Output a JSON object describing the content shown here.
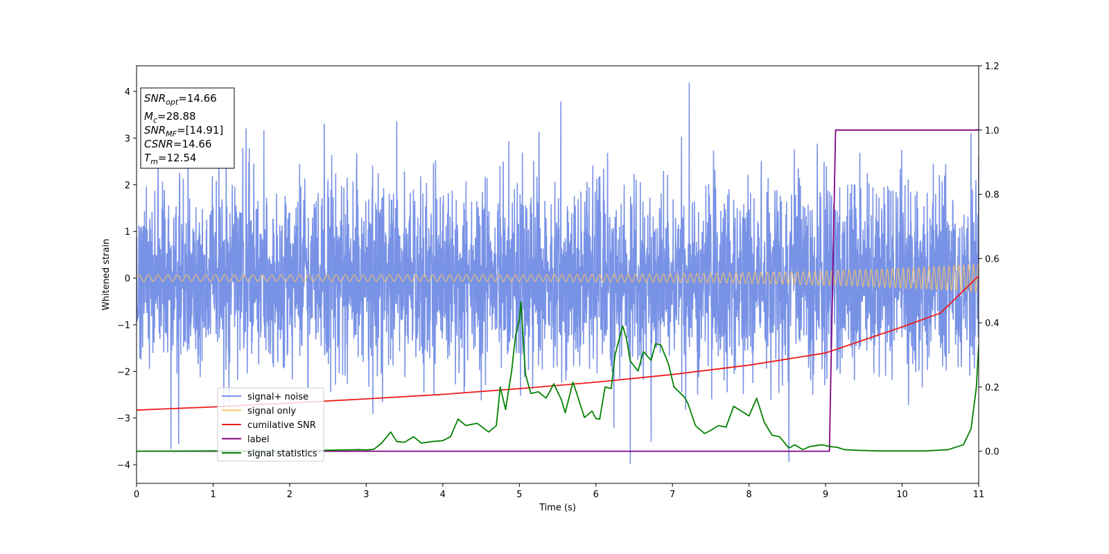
{
  "chart_data": {
    "type": "line",
    "title": "",
    "xlabel": "Time (s)",
    "ylabel": "Whitened strain",
    "xlim": [
      0,
      11
    ],
    "ylim": [
      -4.4,
      4.55
    ],
    "y2lim": [
      -0.1,
      1.2
    ],
    "xticks": [
      "0",
      "1",
      "2",
      "3",
      "4",
      "5",
      "6",
      "7",
      "8",
      "9",
      "10",
      "11"
    ],
    "yticks": [
      "−4",
      "−3",
      "−2",
      "−1",
      "0",
      "1",
      "2",
      "3",
      "4"
    ],
    "y2ticks": [
      "0.0",
      "0.2",
      "0.4",
      "0.6",
      "0.8",
      "1.0",
      "1.2"
    ],
    "grid": false,
    "legend_position": "lower-left",
    "annotation": {
      "snr_opt": {
        "name": "SNR",
        "sub": "opt",
        "value": "=14.66"
      },
      "mc": {
        "name": "M",
        "sub": "c",
        "value": "=28.88"
      },
      "snr_mf": {
        "name": "SNR",
        "sub": "MF",
        "value": "=[14.91]"
      },
      "csnr": {
        "name": "CSNR",
        "sub": "",
        "value": "=14.66"
      },
      "tm": {
        "name": "T",
        "sub": "m",
        "value": "=12.54"
      }
    },
    "series": [
      {
        "name": "signal+ noise",
        "color": "#7892e6",
        "axis": "left",
        "kind": "noise",
        "sigma": 1.0,
        "n_samples": 3600,
        "outliers": [
          {
            "x": 0.45,
            "y": -3.65
          },
          {
            "x": 0.55,
            "y": -3.55
          },
          {
            "x": 2.45,
            "y": 3.3
          },
          {
            "x": 3.4,
            "y": 3.35
          },
          {
            "x": 5.54,
            "y": 3.78
          },
          {
            "x": 6.45,
            "y": -3.98
          },
          {
            "x": 6.72,
            "y": -3.5
          },
          {
            "x": 7.22,
            "y": 4.18
          },
          {
            "x": 8.52,
            "y": -3.93
          },
          {
            "x": 10.9,
            "y": 3.1
          },
          {
            "x": 11.0,
            "y": 2.6
          }
        ]
      },
      {
        "name": "signal only",
        "color": "#f5c16a",
        "axis": "left",
        "kind": "chirp",
        "amp_start": 0.07,
        "amp_end": 0.3,
        "freq_start": 8,
        "freq_end": 16
      },
      {
        "name": "cumilative SNR",
        "color": "#ee1b1b",
        "axis": "right",
        "points": [
          [
            0,
            0.128
          ],
          [
            1,
            0.138
          ],
          [
            2,
            0.15
          ],
          [
            3,
            0.163
          ],
          [
            4,
            0.177
          ],
          [
            5,
            0.195
          ],
          [
            6,
            0.215
          ],
          [
            7,
            0.239
          ],
          [
            8,
            0.268
          ],
          [
            9,
            0.306
          ],
          [
            10,
            0.387
          ],
          [
            10.5,
            0.43
          ],
          [
            11,
            0.546
          ]
        ]
      },
      {
        "name": "label",
        "color": "#800080",
        "axis": "right",
        "points": [
          [
            0,
            0.0
          ],
          [
            9.05,
            0.0
          ],
          [
            9.13,
            1.0
          ],
          [
            11,
            1.0
          ]
        ]
      },
      {
        "name": "signal statistics",
        "color": "#008000",
        "axis": "right",
        "points": [
          [
            0,
            0.0
          ],
          [
            1.0,
            0.001
          ],
          [
            2.0,
            0.001
          ],
          [
            2.5,
            0.003
          ],
          [
            2.9,
            0.005
          ],
          [
            3.0,
            0.004
          ],
          [
            3.1,
            0.006
          ],
          [
            3.2,
            0.025
          ],
          [
            3.32,
            0.06
          ],
          [
            3.4,
            0.03
          ],
          [
            3.5,
            0.028
          ],
          [
            3.62,
            0.045
          ],
          [
            3.72,
            0.025
          ],
          [
            3.85,
            0.03
          ],
          [
            4.0,
            0.033
          ],
          [
            4.1,
            0.045
          ],
          [
            4.2,
            0.1
          ],
          [
            4.3,
            0.08
          ],
          [
            4.45,
            0.087
          ],
          [
            4.6,
            0.06
          ],
          [
            4.7,
            0.08
          ],
          [
            4.75,
            0.2
          ],
          [
            4.82,
            0.13
          ],
          [
            4.9,
            0.25
          ],
          [
            4.95,
            0.36
          ],
          [
            5.0,
            0.41
          ],
          [
            5.02,
            0.465
          ],
          [
            5.08,
            0.24
          ],
          [
            5.15,
            0.18
          ],
          [
            5.25,
            0.185
          ],
          [
            5.35,
            0.165
          ],
          [
            5.45,
            0.21
          ],
          [
            5.55,
            0.16
          ],
          [
            5.6,
            0.12
          ],
          [
            5.7,
            0.215
          ],
          [
            5.75,
            0.18
          ],
          [
            5.85,
            0.105
          ],
          [
            5.95,
            0.125
          ],
          [
            6.0,
            0.102
          ],
          [
            6.05,
            0.1
          ],
          [
            6.12,
            0.2
          ],
          [
            6.2,
            0.195
          ],
          [
            6.25,
            0.3
          ],
          [
            6.35,
            0.39
          ],
          [
            6.4,
            0.35
          ],
          [
            6.45,
            0.28
          ],
          [
            6.55,
            0.25
          ],
          [
            6.62,
            0.31
          ],
          [
            6.72,
            0.283
          ],
          [
            6.78,
            0.335
          ],
          [
            6.85,
            0.33
          ],
          [
            6.95,
            0.27
          ],
          [
            7.02,
            0.2
          ],
          [
            7.15,
            0.17
          ],
          [
            7.2,
            0.15
          ],
          [
            7.3,
            0.08
          ],
          [
            7.42,
            0.055
          ],
          [
            7.5,
            0.065
          ],
          [
            7.6,
            0.08
          ],
          [
            7.7,
            0.075
          ],
          [
            7.8,
            0.14
          ],
          [
            7.9,
            0.125
          ],
          [
            8.0,
            0.11
          ],
          [
            8.1,
            0.165
          ],
          [
            8.2,
            0.09
          ],
          [
            8.3,
            0.05
          ],
          [
            8.4,
            0.045
          ],
          [
            8.52,
            0.01
          ],
          [
            8.6,
            0.02
          ],
          [
            8.7,
            0.005
          ],
          [
            8.8,
            0.015
          ],
          [
            8.95,
            0.02
          ],
          [
            9.05,
            0.015
          ],
          [
            9.15,
            0.012
          ],
          [
            9.25,
            0.005
          ],
          [
            9.4,
            0.003
          ],
          [
            9.7,
            0.001
          ],
          [
            10.3,
            0.001
          ],
          [
            10.6,
            0.005
          ],
          [
            10.8,
            0.02
          ],
          [
            10.9,
            0.07
          ],
          [
            10.97,
            0.2
          ],
          [
            11.0,
            0.33
          ]
        ]
      }
    ]
  }
}
